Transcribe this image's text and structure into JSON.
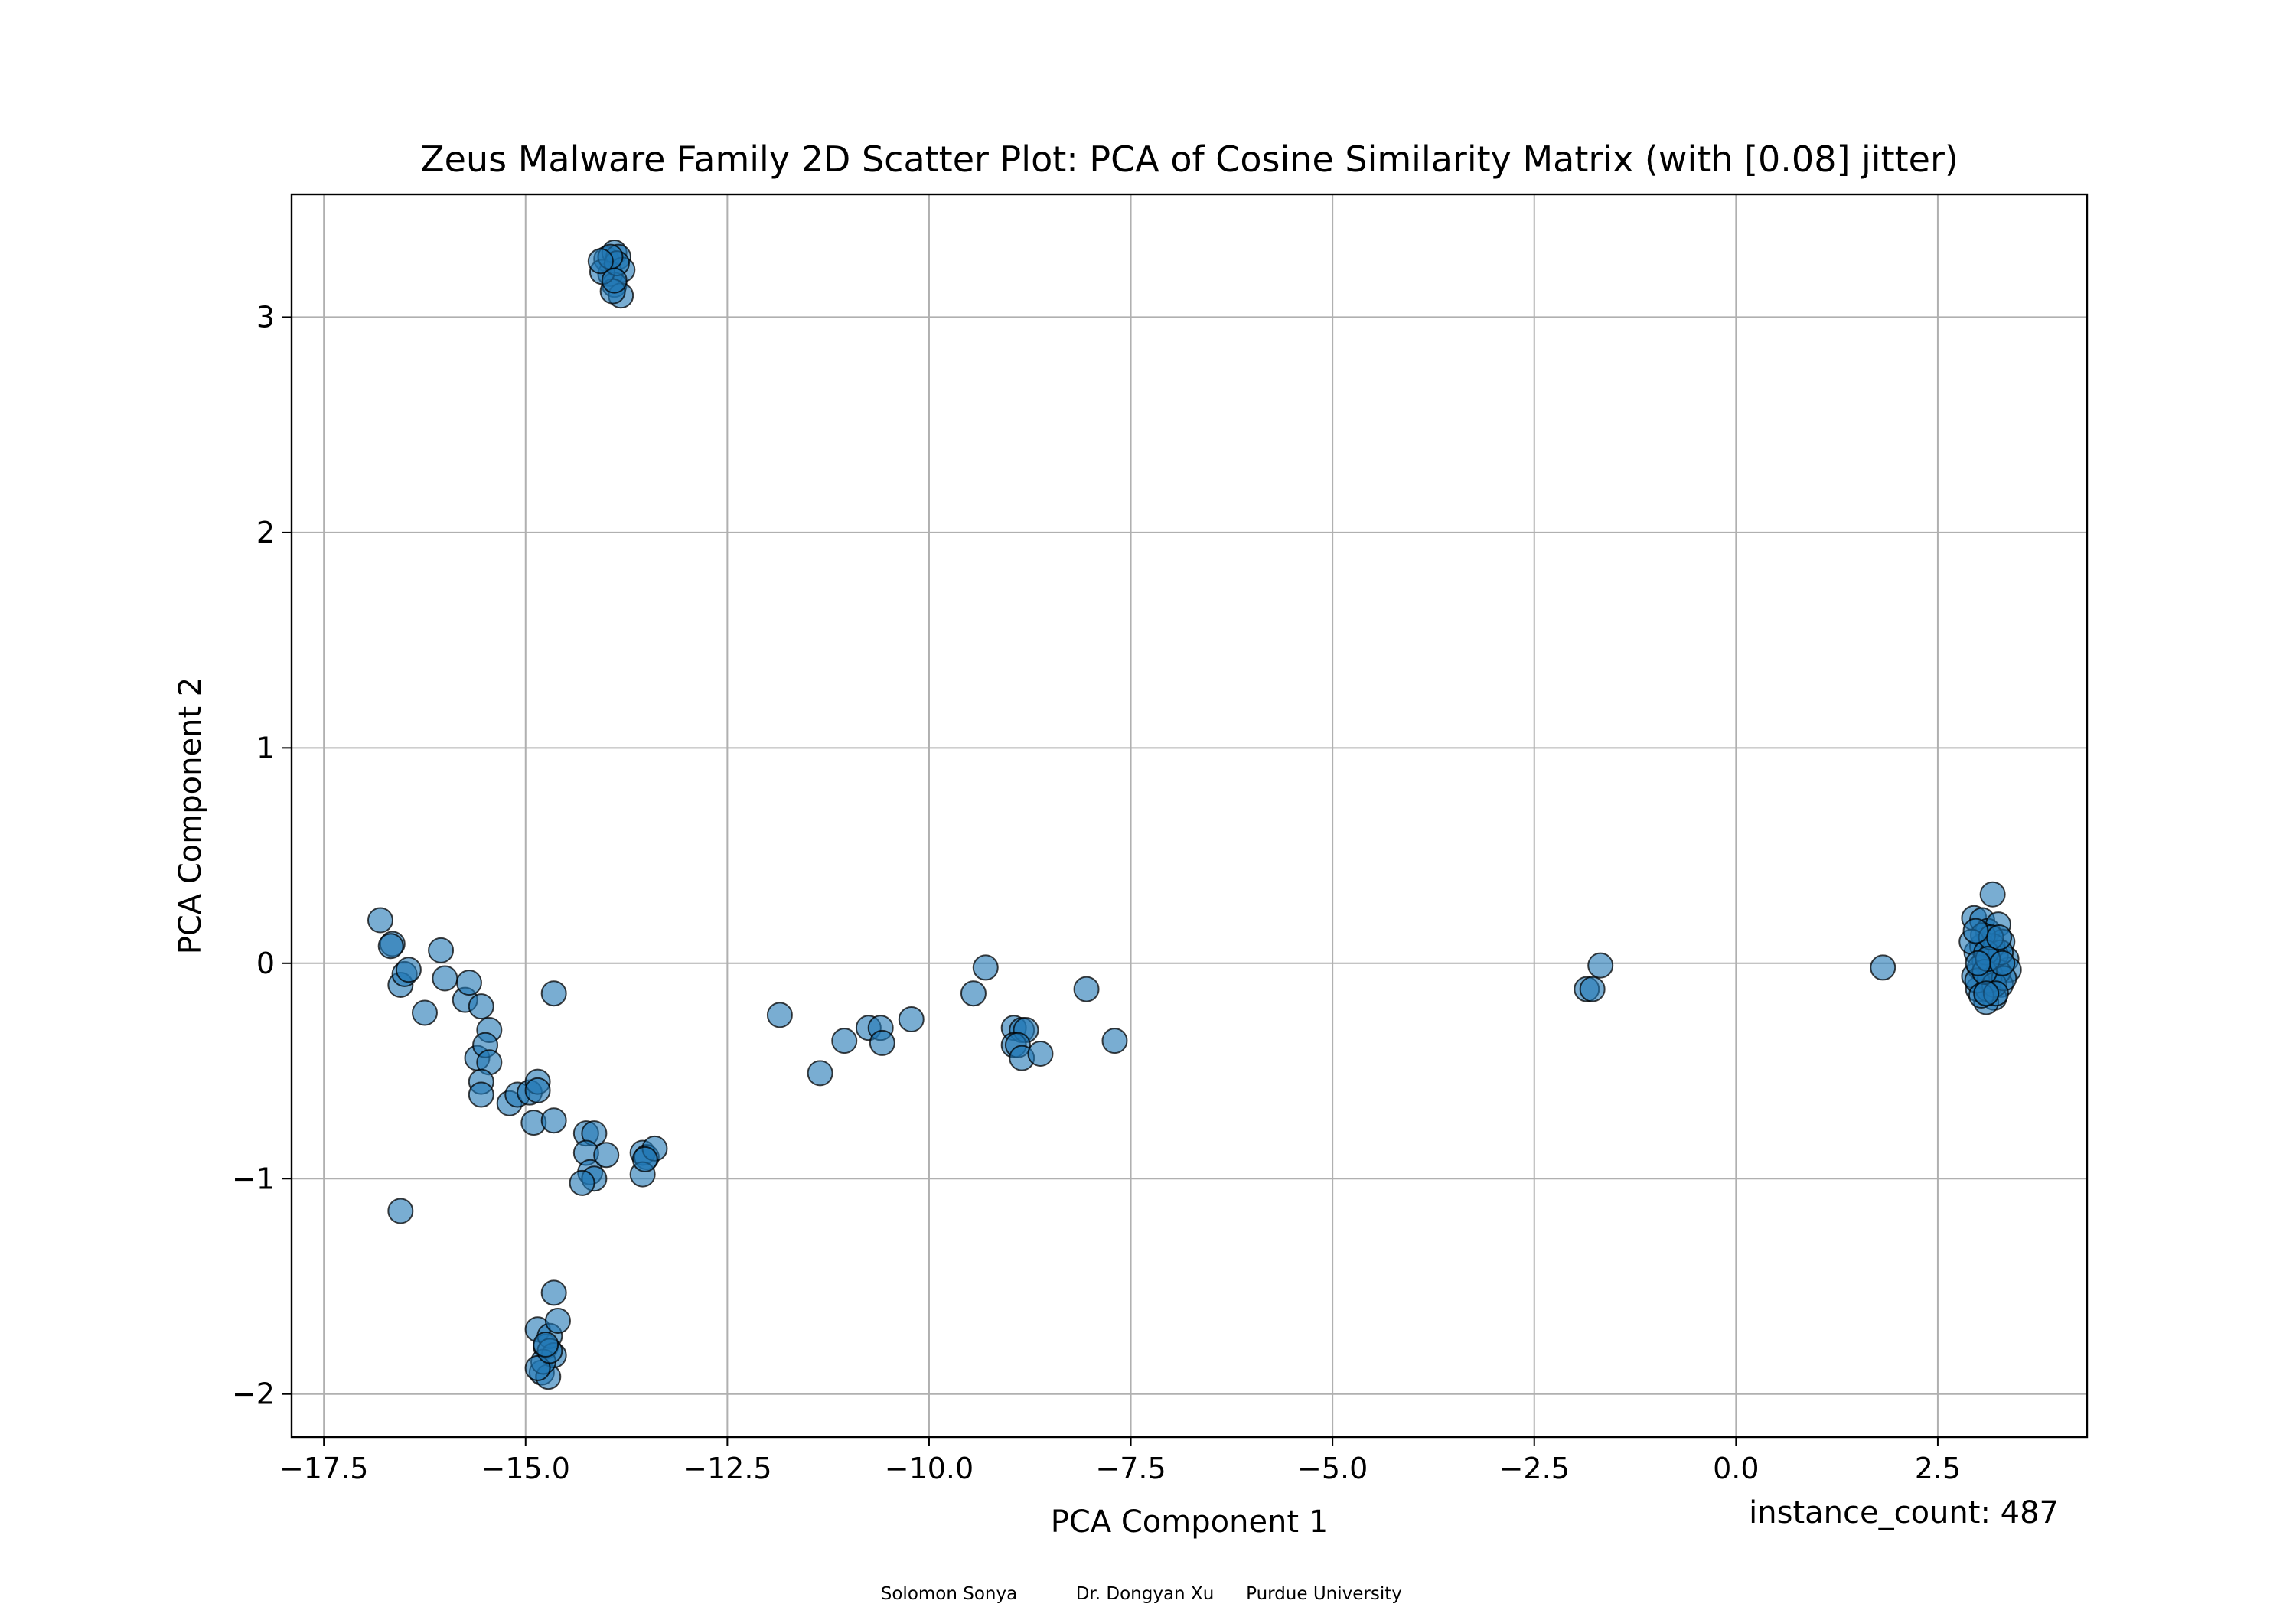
{
  "chart_data": {
    "type": "scatter",
    "title": "Zeus Malware Family 2D Scatter Plot: PCA of Cosine Similarity Matrix (with [0.08] jitter)",
    "xlabel": "PCA Component 1",
    "ylabel": "PCA Component 2",
    "xlim": [
      -17.9,
      4.35
    ],
    "ylim": [
      -2.2,
      3.57
    ],
    "xticks": [
      -17.5,
      -15.0,
      -12.5,
      -10.0,
      -7.5,
      -5.0,
      -2.5,
      0.0,
      2.5
    ],
    "xtick_labels": [
      "−17.5",
      "−15.0",
      "−12.5",
      "−10.0",
      "−7.5",
      "−5.0",
      "−2.5",
      "0.0",
      "2.5"
    ],
    "yticks": [
      -2,
      -1,
      0,
      1,
      2,
      3
    ],
    "ytick_labels": [
      "−2",
      "−1",
      "0",
      "1",
      "2",
      "3"
    ],
    "grid": true,
    "annotation": "instance_count: 487",
    "footer": [
      "Solomon Sonya",
      "Dr. Dongyan Xu",
      "Purdue University"
    ],
    "marker_color": "#1f77b4",
    "marker_edge_color": "#000000",
    "points": [
      [
        -14.0,
        3.27
      ],
      [
        -13.9,
        3.3
      ],
      [
        -13.85,
        3.28
      ],
      [
        -13.95,
        3.2
      ],
      [
        -13.8,
        3.22
      ],
      [
        -13.9,
        3.15
      ],
      [
        -13.82,
        3.1
      ],
      [
        -13.92,
        3.12
      ],
      [
        -14.05,
        3.21
      ],
      [
        -13.87,
        3.25
      ],
      [
        -13.95,
        3.28
      ],
      [
        -14.07,
        3.26
      ],
      [
        -13.9,
        3.17
      ],
      [
        -16.8,
        0.2
      ],
      [
        -16.65,
        0.09
      ],
      [
        -16.67,
        0.08
      ],
      [
        -16.55,
        -0.1
      ],
      [
        -16.5,
        -0.05
      ],
      [
        -16.45,
        -0.03
      ],
      [
        -16.25,
        -0.23
      ],
      [
        -16.05,
        0.06
      ],
      [
        -16.0,
        -0.07
      ],
      [
        -15.75,
        -0.17
      ],
      [
        -15.7,
        -0.09
      ],
      [
        -15.55,
        -0.2
      ],
      [
        -15.45,
        -0.31
      ],
      [
        -15.6,
        -0.44
      ],
      [
        -15.5,
        -0.38
      ],
      [
        -15.45,
        -0.46
      ],
      [
        -15.55,
        -0.55
      ],
      [
        -15.55,
        -0.61
      ],
      [
        -15.2,
        -0.65
      ],
      [
        -15.1,
        -0.61
      ],
      [
        -14.95,
        -0.6
      ],
      [
        -14.85,
        -0.55
      ],
      [
        -14.85,
        -0.59
      ],
      [
        -14.9,
        -0.74
      ],
      [
        -14.65,
        -0.73
      ],
      [
        -14.65,
        -0.14
      ],
      [
        -14.25,
        -0.79
      ],
      [
        -14.15,
        -0.79
      ],
      [
        -14.25,
        -0.88
      ],
      [
        -14.2,
        -0.97
      ],
      [
        -14.15,
        -1.0
      ],
      [
        -14.3,
        -1.02
      ],
      [
        -14.0,
        -0.89
      ],
      [
        -13.55,
        -0.88
      ],
      [
        -13.5,
        -0.9
      ],
      [
        -13.55,
        -0.98
      ],
      [
        -13.4,
        -0.86
      ],
      [
        -13.52,
        -0.91
      ],
      [
        -16.55,
        -1.15
      ],
      [
        -14.85,
        -1.7
      ],
      [
        -14.75,
        -1.78
      ],
      [
        -14.7,
        -1.73
      ],
      [
        -14.65,
        -1.53
      ],
      [
        -14.6,
        -1.66
      ],
      [
        -14.8,
        -1.9
      ],
      [
        -14.72,
        -1.92
      ],
      [
        -14.65,
        -1.82
      ],
      [
        -14.78,
        -1.85
      ],
      [
        -14.85,
        -1.88
      ],
      [
        -14.7,
        -1.8
      ],
      [
        -14.75,
        -1.77
      ],
      [
        -11.85,
        -0.24
      ],
      [
        -11.35,
        -0.51
      ],
      [
        -11.05,
        -0.36
      ],
      [
        -10.75,
        -0.3
      ],
      [
        -10.6,
        -0.3
      ],
      [
        -10.58,
        -0.37
      ],
      [
        -10.22,
        -0.26
      ],
      [
        -9.45,
        -0.14
      ],
      [
        -9.3,
        -0.02
      ],
      [
        -8.95,
        -0.3
      ],
      [
        -8.85,
        -0.31
      ],
      [
        -8.8,
        -0.31
      ],
      [
        -8.95,
        -0.38
      ],
      [
        -8.9,
        -0.38
      ],
      [
        -8.85,
        -0.44
      ],
      [
        -8.62,
        -0.42
      ],
      [
        -8.05,
        -0.12
      ],
      [
        -7.7,
        -0.36
      ],
      [
        -1.85,
        -0.12
      ],
      [
        -1.78,
        -0.12
      ],
      [
        -1.68,
        -0.01
      ],
      [
        1.82,
        -0.02
      ],
      [
        2.95,
        0.21
      ],
      [
        3.05,
        0.2
      ],
      [
        3.12,
        0.15
      ],
      [
        3.18,
        0.32
      ],
      [
        3.25,
        0.18
      ],
      [
        3.3,
        0.1
      ],
      [
        3.35,
        0.02
      ],
      [
        3.38,
        -0.03
      ],
      [
        3.28,
        -0.1
      ],
      [
        3.2,
        -0.16
      ],
      [
        3.1,
        -0.18
      ],
      [
        3.0,
        -0.12
      ],
      [
        2.95,
        -0.06
      ],
      [
        2.98,
        0.05
      ],
      [
        3.05,
        0.08
      ],
      [
        3.08,
        0.01
      ],
      [
        3.15,
        -0.05
      ],
      [
        3.22,
        0.04
      ],
      [
        3.12,
        -0.12
      ],
      [
        3.02,
        -0.02
      ],
      [
        3.18,
        0.08
      ],
      [
        3.25,
        -0.04
      ],
      [
        3.06,
        0.13
      ],
      [
        2.92,
        0.1
      ],
      [
        3.28,
        0.05
      ],
      [
        3.14,
        -0.08
      ],
      [
        2.99,
        -0.08
      ],
      [
        3.1,
        0.05
      ],
      [
        3.2,
        -0.1
      ],
      [
        3.32,
        -0.07
      ],
      [
        3.04,
        -0.15
      ],
      [
        3.16,
        0.12
      ],
      [
        3.08,
        -0.04
      ],
      [
        3.26,
        0.12
      ],
      [
        2.97,
        0.15
      ],
      [
        3.12,
        0.02
      ],
      [
        3.22,
        -0.14
      ],
      [
        3.0,
        0.0
      ],
      [
        3.1,
        -0.14
      ],
      [
        3.3,
        0.0
      ]
    ]
  }
}
